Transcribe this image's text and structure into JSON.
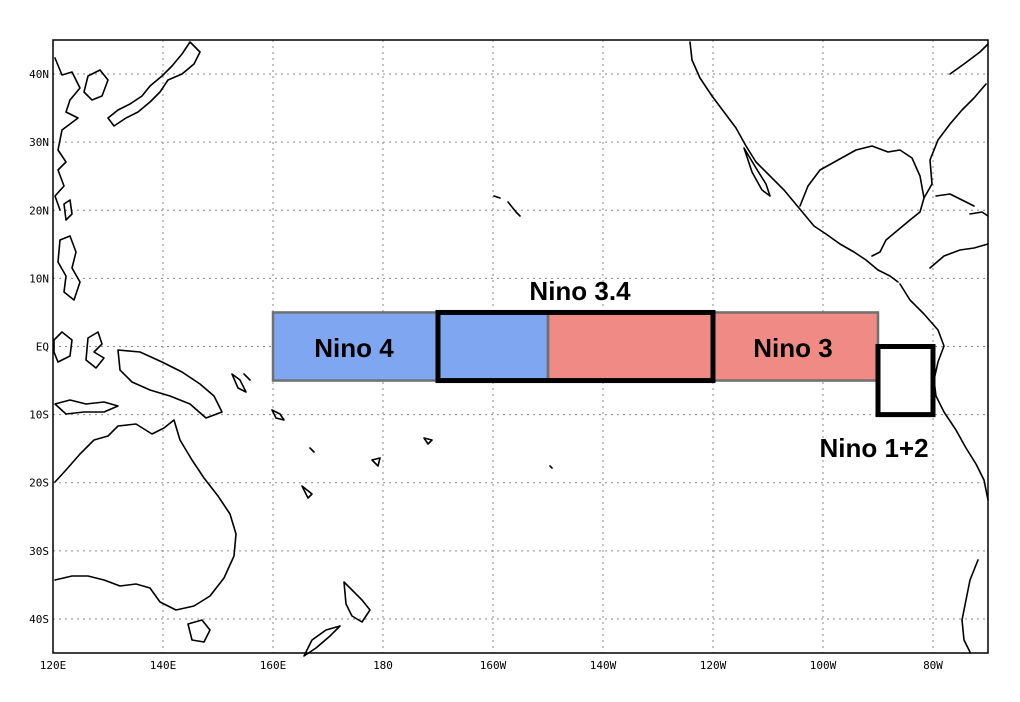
{
  "map": {
    "lon_range": [
      120,
      290
    ],
    "lat_range": [
      -45,
      45
    ],
    "x_ticks": [
      {
        "lon": 120,
        "label": "120E"
      },
      {
        "lon": 140,
        "label": "140E"
      },
      {
        "lon": 160,
        "label": "160E"
      },
      {
        "lon": 180,
        "label": "180"
      },
      {
        "lon": 200,
        "label": "160W"
      },
      {
        "lon": 220,
        "label": "140W"
      },
      {
        "lon": 240,
        "label": "120W"
      },
      {
        "lon": 260,
        "label": "100W"
      },
      {
        "lon": 280,
        "label": "80W"
      }
    ],
    "y_ticks": [
      {
        "lat": 40,
        "label": "40N"
      },
      {
        "lat": 30,
        "label": "30N"
      },
      {
        "lat": 20,
        "label": "20N"
      },
      {
        "lat": 10,
        "label": "10N"
      },
      {
        "lat": 0,
        "label": "EQ"
      },
      {
        "lat": -10,
        "label": "10S"
      },
      {
        "lat": -20,
        "label": "20S"
      },
      {
        "lat": -30,
        "label": "30S"
      },
      {
        "lat": -40,
        "label": "40S"
      }
    ],
    "grid": true
  },
  "regions": [
    {
      "id": "nino4",
      "label": "Nino 4",
      "lon": [
        160,
        210
      ],
      "lat": [
        -5,
        5
      ],
      "fill": "#7fa6f0",
      "outline": "#707070"
    },
    {
      "id": "nino3",
      "label": "Nino 3",
      "lon": [
        210,
        270
      ],
      "lat": [
        -5,
        5
      ],
      "fill": "#ef8a85",
      "outline": "#707070"
    },
    {
      "id": "nino34",
      "label": "Nino 3.4",
      "lon": [
        190,
        240
      ],
      "lat": [
        -5,
        5
      ],
      "fill": "none",
      "outline": "#000000"
    },
    {
      "id": "nino12",
      "label": "Nino 1+2",
      "lon": [
        270,
        280
      ],
      "lat": [
        -10,
        0
      ],
      "fill": "none",
      "outline": "#000000"
    }
  ],
  "colors": {
    "background": "#ffffff",
    "coastline": "#000000",
    "grid": "#8a8a8a"
  }
}
